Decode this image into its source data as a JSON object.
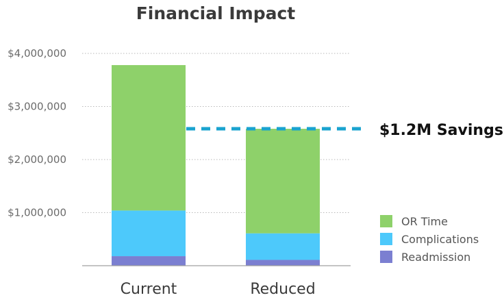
{
  "chart_data": {
    "type": "bar",
    "stacked": true,
    "title": "Financial Impact",
    "xlabel": "",
    "ylabel": "",
    "categories": [
      "Current",
      "Reduced"
    ],
    "series": [
      {
        "name": "Readmission",
        "values": [
          180000,
          110000
        ],
        "color": "#7b7fd1"
      },
      {
        "name": "Complications",
        "values": [
          860000,
          500000
        ],
        "color": "#4dc9fb"
      },
      {
        "name": "OR Time",
        "values": [
          2740000,
          1970000
        ],
        "color": "#8ed16a"
      }
    ],
    "legend_order": [
      "OR Time",
      "Complications",
      "Readmission"
    ],
    "ylim": [
      0,
      4000000
    ],
    "yticks": [
      "$4,000,000",
      "$3,000,000",
      "$2,000,000",
      "$1,000,000"
    ],
    "ytick_values": [
      4000000,
      3000000,
      2000000,
      1000000
    ],
    "grid": true,
    "legend_placement": "bottom-right",
    "annotation": {
      "text": "$1.2M Savings",
      "value": 2580000,
      "color": "#1aa3cf"
    }
  }
}
